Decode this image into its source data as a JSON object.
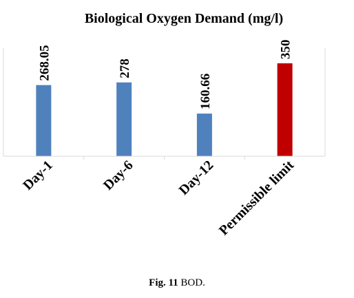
{
  "chart_data": {
    "type": "bar",
    "title": "Biological Oxygen Demand (mg/l)",
    "categories": [
      "Day-1",
      "Day-6",
      "Day-12",
      "Permissible limit"
    ],
    "values": [
      268.05,
      278,
      160.66,
      350
    ],
    "data_labels": [
      "268.05",
      "278",
      "160.66",
      "350"
    ],
    "ylim": [
      0,
      350
    ],
    "grid": false,
    "legend": "none",
    "colors": [
      "#4F81BD",
      "#4F81BD",
      "#4F81BD",
      "#C00000"
    ]
  },
  "caption": {
    "label": "Fig. 11",
    "text": "BOD."
  }
}
